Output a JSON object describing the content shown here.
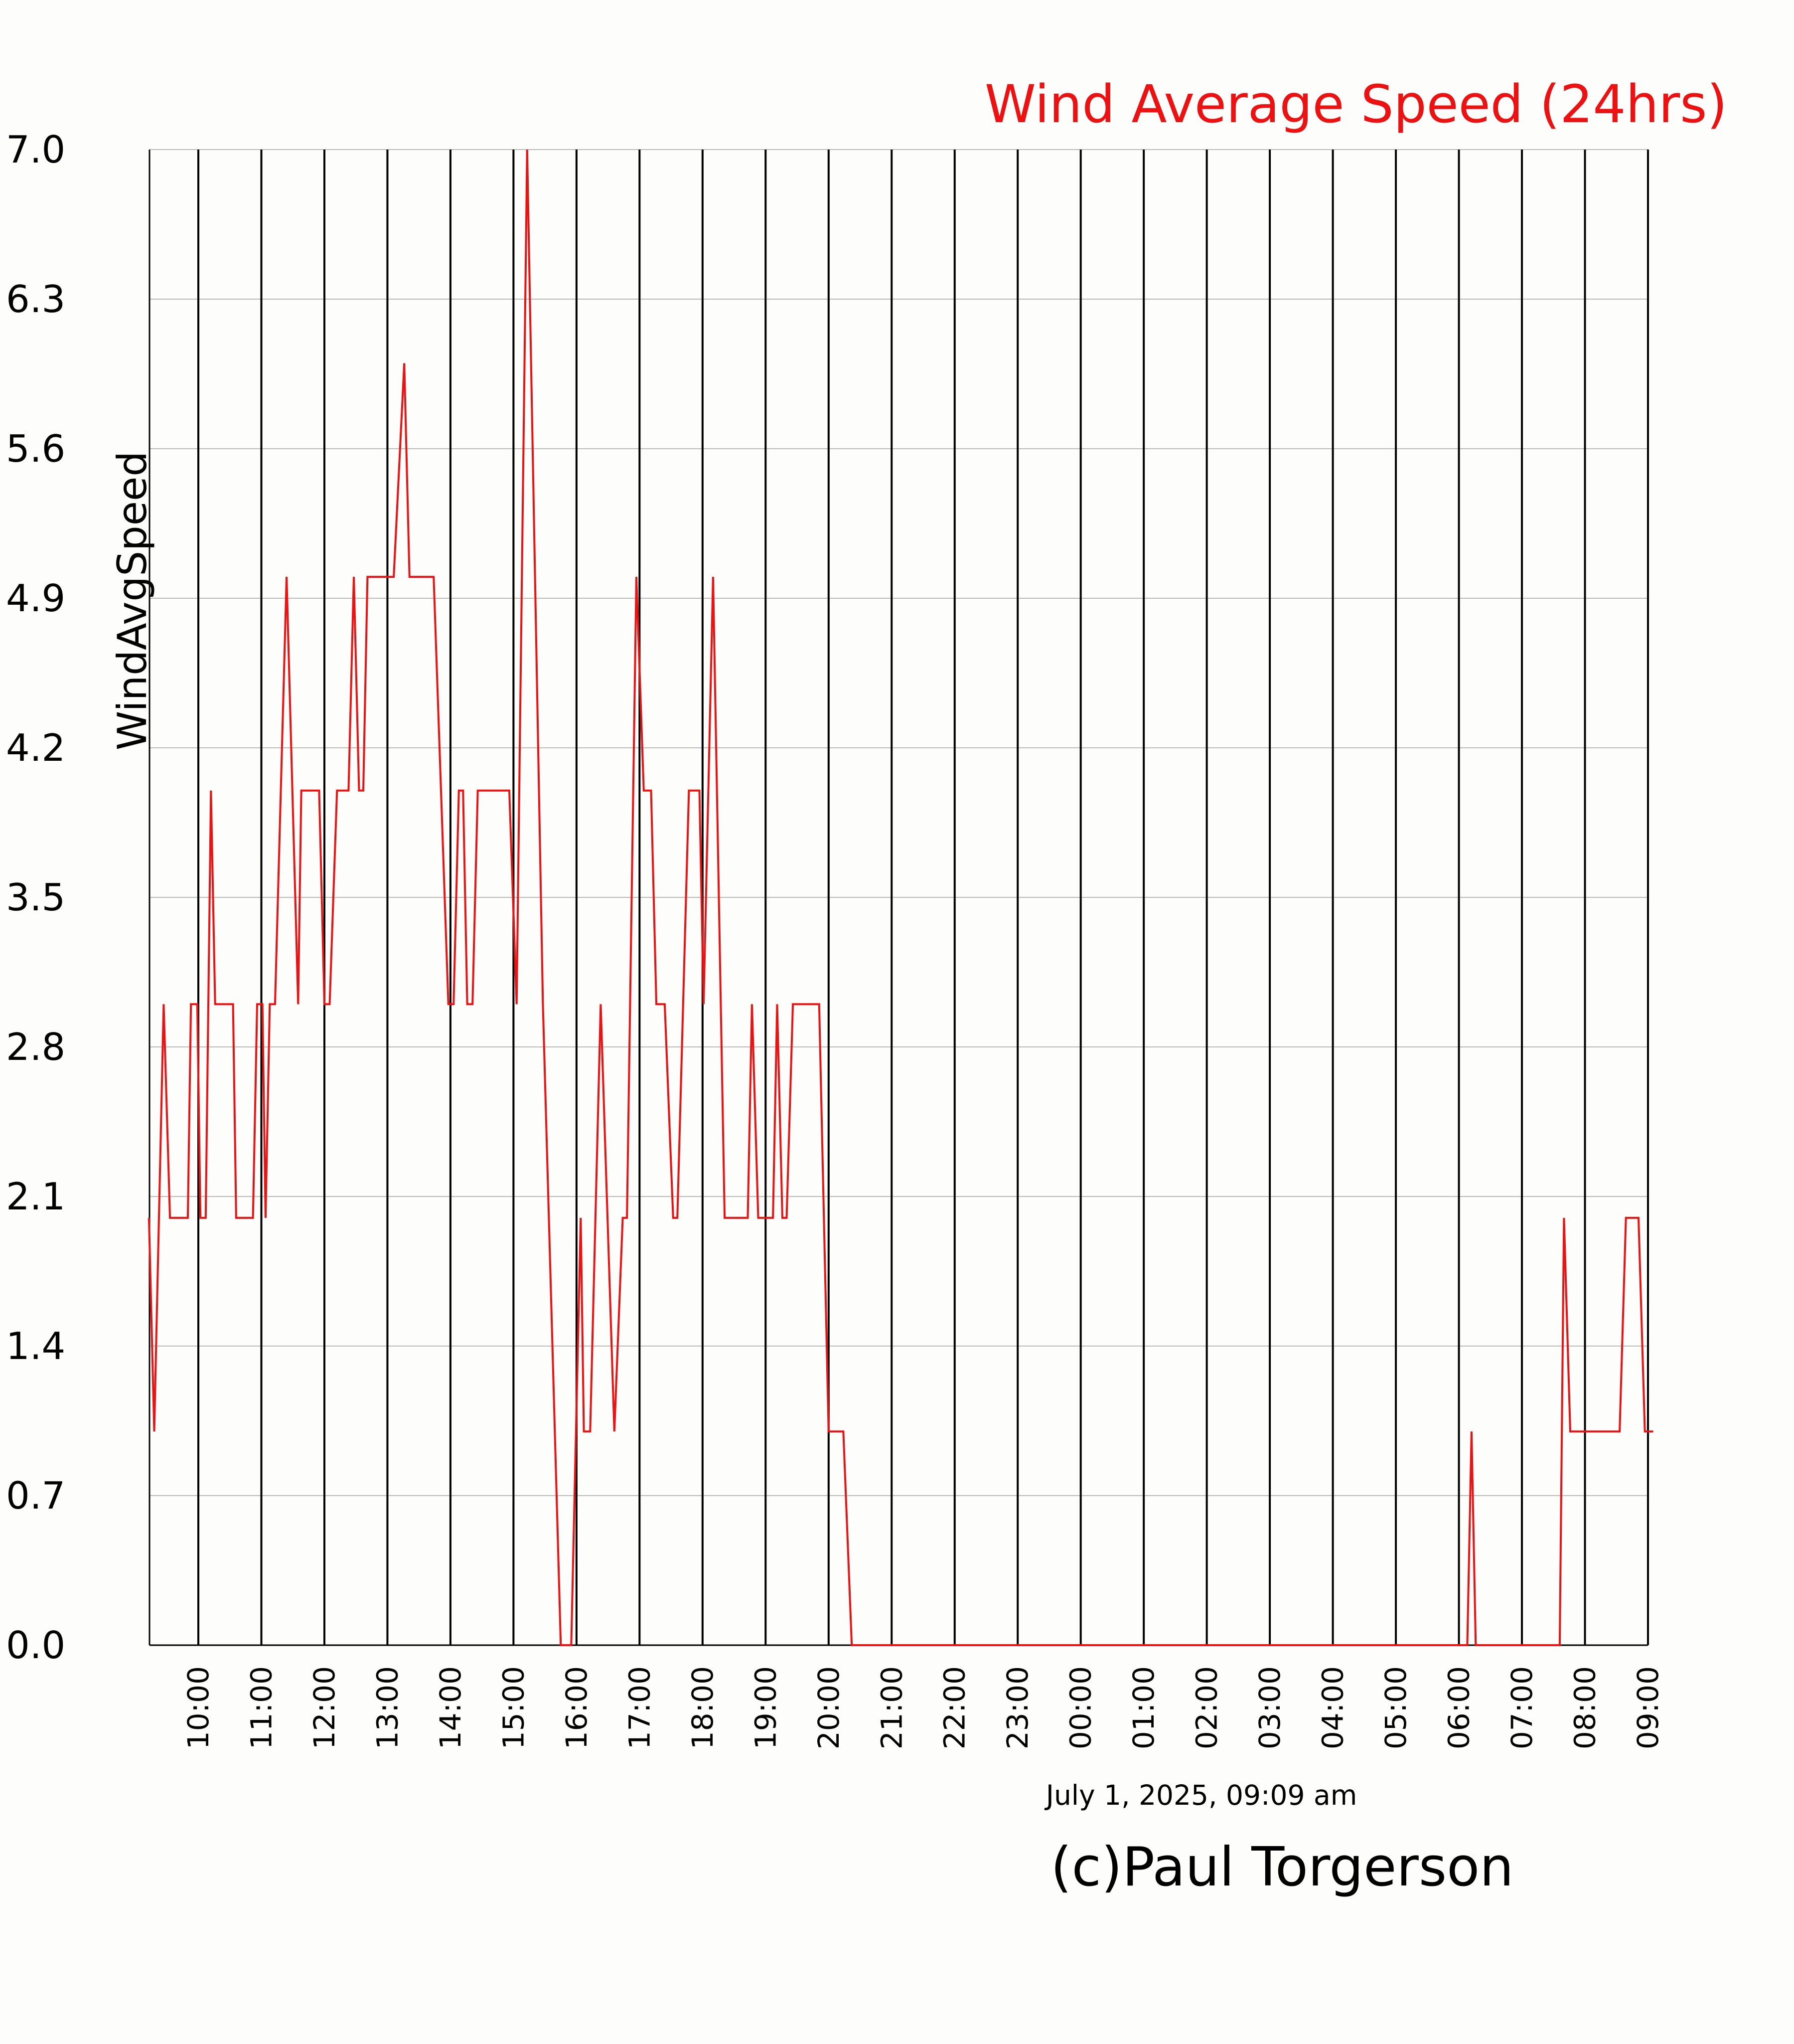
{
  "chart_data": {
    "type": "line",
    "title": "Wind Average Speed (24hrs)",
    "ylabel": "WindAvgSpeed",
    "xlabel": "",
    "ylim": [
      0.0,
      7.0
    ],
    "yticks": [
      "0.0",
      "0.7",
      "1.4",
      "2.1",
      "2.8",
      "3.5",
      "4.2",
      "4.9",
      "5.6",
      "6.3",
      "7.0"
    ],
    "xticks": [
      "10:00",
      "11:00",
      "12:00",
      "13:00",
      "14:00",
      "15:00",
      "16:00",
      "17:00",
      "18:00",
      "19:00",
      "20:00",
      "21:00",
      "22:00",
      "23:00",
      "00:00",
      "01:00",
      "02:00",
      "03:00",
      "04:00",
      "05:00",
      "06:00",
      "07:00",
      "08:00",
      "09:00"
    ],
    "grid": true,
    "series": [
      {
        "color": "#ee1111",
        "points": [
          [
            "09:13",
            2
          ],
          [
            "09:18",
            1
          ],
          [
            "09:27",
            3
          ],
          [
            "09:33",
            2
          ],
          [
            "09:50",
            2
          ],
          [
            "09:53",
            3
          ],
          [
            "09:59",
            3
          ],
          [
            "10:02",
            2
          ],
          [
            "10:07",
            2
          ],
          [
            "10:12",
            4
          ],
          [
            "10:16",
            3
          ],
          [
            "10:33",
            3
          ],
          [
            "10:36",
            2
          ],
          [
            "10:52",
            2
          ],
          [
            "10:56",
            3
          ],
          [
            "11:01",
            3
          ],
          [
            "11:04",
            2
          ],
          [
            "11:08",
            3
          ],
          [
            "11:13",
            3
          ],
          [
            "11:24",
            5
          ],
          [
            "11:35",
            3
          ],
          [
            "11:38",
            4
          ],
          [
            "11:55",
            4
          ],
          [
            "12:00",
            3
          ],
          [
            "12:05",
            3
          ],
          [
            "12:12",
            4
          ],
          [
            "12:23",
            4
          ],
          [
            "12:28",
            5
          ],
          [
            "12:33",
            4
          ],
          [
            "12:37",
            4
          ],
          [
            "12:41",
            5
          ],
          [
            "13:06",
            5
          ],
          [
            "13:16",
            6
          ],
          [
            "13:21",
            5
          ],
          [
            "13:44",
            5
          ],
          [
            "13:58",
            3
          ],
          [
            "14:03",
            3
          ],
          [
            "14:08",
            4
          ],
          [
            "14:12",
            4
          ],
          [
            "14:16",
            3
          ],
          [
            "14:21",
            3
          ],
          [
            "14:26",
            4
          ],
          [
            "14:56",
            4
          ],
          [
            "15:03",
            3
          ],
          [
            "15:13",
            7
          ],
          [
            "15:28",
            3
          ],
          [
            "15:45",
            0
          ],
          [
            "15:55",
            0
          ],
          [
            "16:04",
            2
          ],
          [
            "16:07",
            1
          ],
          [
            "16:13",
            1
          ],
          [
            "16:23",
            3
          ],
          [
            "16:36",
            1
          ],
          [
            "16:44",
            2
          ],
          [
            "16:48",
            2
          ],
          [
            "16:57",
            5
          ],
          [
            "17:04",
            4
          ],
          [
            "17:11",
            4
          ],
          [
            "17:16",
            3
          ],
          [
            "17:24",
            3
          ],
          [
            "17:32",
            2
          ],
          [
            "17:36",
            2
          ],
          [
            "17:47",
            4
          ],
          [
            "17:57",
            4
          ],
          [
            "18:01",
            3
          ],
          [
            "18:10",
            5
          ],
          [
            "18:21",
            2
          ],
          [
            "18:43",
            2
          ],
          [
            "18:47",
            3
          ],
          [
            "18:53",
            2
          ],
          [
            "19:07",
            2
          ],
          [
            "19:11",
            3
          ],
          [
            "19:16",
            2
          ],
          [
            "19:20",
            2
          ],
          [
            "19:26",
            3
          ],
          [
            "19:51",
            3
          ],
          [
            "20:00",
            1
          ],
          [
            "20:14",
            1
          ],
          [
            "20:22",
            0
          ],
          [
            "06:08",
            0
          ],
          [
            "06:12",
            1
          ],
          [
            "06:16",
            0
          ],
          [
            "07:36",
            0
          ],
          [
            "07:40",
            2
          ],
          [
            "07:46",
            1
          ],
          [
            "08:33",
            1
          ],
          [
            "08:39",
            2
          ],
          [
            "08:51",
            2
          ],
          [
            "08:57",
            1
          ],
          [
            "09:05",
            1
          ]
        ]
      }
    ]
  },
  "footer": {
    "timestamp": "July 1, 2025, 09:09 am",
    "credit": "(c)Paul Torgerson"
  }
}
